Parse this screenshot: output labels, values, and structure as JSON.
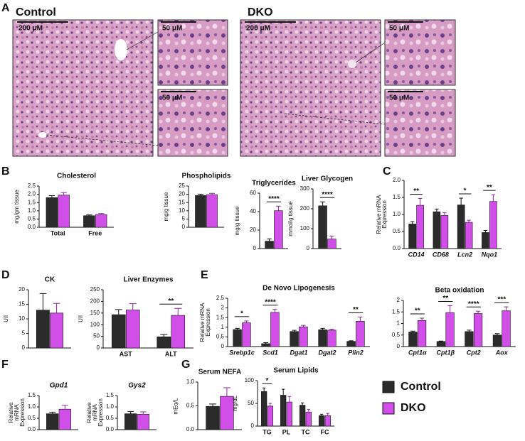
{
  "panel_labels": [
    "A",
    "B",
    "C",
    "D",
    "E",
    "F",
    "G"
  ],
  "histology": [
    {
      "label": "Control",
      "main_scale": "200 μM",
      "inset_scales": [
        "50 μM",
        "50 μM"
      ]
    },
    {
      "label": "DKO",
      "main_scale": "200 μM",
      "inset_scales": [
        "50 μM",
        "50 μM"
      ]
    }
  ],
  "chart_data": [
    {
      "type": "bar",
      "title": "Cholesterol",
      "y_label": "mg/gm tissue",
      "categories": [
        "Total",
        "Free"
      ],
      "ylim": [
        0,
        2.5
      ],
      "yticks": [
        {
          "value": 0,
          "label": "0.0"
        },
        {
          "value": 0.5,
          "label": "0.5"
        },
        {
          "value": 1,
          "label": "1.0"
        },
        {
          "value": 1.5,
          "label": "1.5"
        },
        {
          "value": 2,
          "label": "2.0"
        },
        {
          "value": 2.5,
          "label": "2.5"
        }
      ],
      "series": [
        {
          "name": "Control",
          "color": "#2b2b2b",
          "values": [
            1.8,
            0.7
          ],
          "errors": [
            0.12,
            0.05
          ]
        },
        {
          "name": "DKO",
          "color": "#d24ee8",
          "values": [
            1.95,
            0.77
          ],
          "errors": [
            0.15,
            0.06
          ]
        }
      ]
    },
    {
      "type": "bar",
      "title": "Phospholipids",
      "y_label": "mg/g tissue",
      "categories": [
        null
      ],
      "ylim": [
        0,
        25
      ],
      "yticks": [
        0,
        5,
        10,
        15,
        20,
        25
      ],
      "series": [
        {
          "name": "Control",
          "color": "#2b2b2b",
          "values": [
            19.3
          ],
          "errors": [
            0.8
          ]
        },
        {
          "name": "DKO",
          "color": "#d24ee8",
          "values": [
            19.8
          ],
          "errors": [
            0.8
          ]
        }
      ]
    },
    {
      "type": "bar",
      "title": "Triglycerides",
      "y_label": "mg/g tissue",
      "categories": [
        null
      ],
      "significance": [
        "****"
      ],
      "ylim": [
        0,
        60
      ],
      "yticks": [
        0,
        20,
        40,
        60
      ],
      "series": [
        {
          "name": "Control",
          "color": "#2b2b2b",
          "values": [
            8
          ],
          "errors": [
            2.5
          ]
        },
        {
          "name": "DKO",
          "color": "#d24ee8",
          "values": [
            41
          ],
          "errors": [
            5
          ]
        }
      ]
    },
    {
      "type": "bar",
      "title": "Liver Glycogen",
      "y_label": "mmol/g tissue",
      "categories": [
        null
      ],
      "significance": [
        "****"
      ],
      "ylim": [
        0,
        300
      ],
      "yticks": [
        0,
        100,
        200,
        300
      ],
      "series": [
        {
          "name": "Control",
          "color": "#2b2b2b",
          "values": [
            215
          ],
          "errors": [
            20
          ]
        },
        {
          "name": "DKO",
          "color": "#d24ee8",
          "values": [
            48
          ],
          "errors": [
            15
          ]
        }
      ]
    },
    {
      "type": "bar",
      "y_label": "Relative mRNA Expression",
      "categories": [
        "CD14",
        "CD68",
        "Lcn2",
        "Nqo1"
      ],
      "italic_categories": true,
      "significance": [
        "**",
        null,
        "*",
        "**"
      ],
      "ylim": [
        0,
        2
      ],
      "yticks": [
        {
          "value": 0,
          "label": "0.0"
        },
        {
          "value": 0.5,
          "label": "0.5"
        },
        {
          "value": 1,
          "label": "1.0"
        },
        {
          "value": 1.5,
          "label": "1.5"
        },
        {
          "value": 2,
          "label": "2.0"
        }
      ],
      "series": [
        {
          "name": "Control",
          "color": "#2b2b2b",
          "values": [
            0.72,
            1.08,
            1.28,
            0.47
          ],
          "errors": [
            0.07,
            0.08,
            0.2,
            0.06
          ]
        },
        {
          "name": "DKO",
          "color": "#d24ee8",
          "values": [
            1.27,
            0.97,
            0.77,
            1.38
          ],
          "errors": [
            0.2,
            0.08,
            0.06,
            0.2
          ]
        }
      ]
    },
    {
      "type": "bar",
      "title": "CK",
      "y_label": "U/l",
      "categories": [
        null
      ],
      "ylim": [
        0,
        20
      ],
      "yticks": [
        0,
        5,
        10,
        15,
        20
      ],
      "series": [
        {
          "name": "Control",
          "color": "#2b2b2b",
          "values": [
            13
          ],
          "errors": [
            5.7
          ]
        },
        {
          "name": "DKO",
          "color": "#d24ee8",
          "values": [
            12
          ],
          "errors": [
            3.3
          ]
        }
      ]
    },
    {
      "type": "bar",
      "title": "Liver Enzymes",
      "y_label": "U/l",
      "categories": [
        "AST",
        "ALT"
      ],
      "significance": [
        null,
        "**"
      ],
      "ylim": [
        0,
        250
      ],
      "yticks": [
        0,
        50,
        100,
        150,
        200,
        250
      ],
      "series": [
        {
          "name": "Control",
          "color": "#2b2b2b",
          "values": [
            143,
            48
          ],
          "errors": [
            22,
            10
          ]
        },
        {
          "name": "DKO",
          "color": "#d24ee8",
          "values": [
            163,
            140
          ],
          "errors": [
            27,
            30
          ]
        }
      ]
    },
    {
      "type": "bar",
      "title": "De Novo Lipogenesis",
      "y_label": "Relative mRNA Expression",
      "categories": [
        "Srebp1c",
        "Scd1",
        "Dgat1",
        "Dgat2",
        "Plin2"
      ],
      "italic_categories": true,
      "significance": [
        "*",
        "****",
        null,
        null,
        "**"
      ],
      "ylim": [
        0,
        2.5
      ],
      "yticks": [
        0,
        0.5,
        1,
        1.5,
        2,
        2.5
      ],
      "series": [
        {
          "name": "Control",
          "color": "#2b2b2b",
          "values": [
            0.88,
            0.15,
            0.78,
            0.87,
            0.27
          ],
          "errors": [
            0.06,
            0.05,
            0.06,
            0.07,
            0.03
          ]
        },
        {
          "name": "DKO",
          "color": "#d24ee8",
          "values": [
            1.23,
            1.77,
            1.02,
            0.85,
            1.31
          ],
          "errors": [
            0.1,
            0.15,
            0.08,
            0.05,
            0.22
          ]
        }
      ]
    },
    {
      "type": "bar",
      "title": "Beta oxidation",
      "categories": [
        "Cpt1α",
        "Cpt1β",
        "Cpt2",
        "Aox"
      ],
      "italic_categories": true,
      "significance": [
        "**",
        "**",
        "****",
        "***"
      ],
      "ylim": [
        0,
        2
      ],
      "yticks": [
        0,
        0.5,
        1,
        1.5,
        2
      ],
      "series": [
        {
          "name": "Control",
          "color": "#2b2b2b",
          "values": [
            0.63,
            0.22,
            0.65,
            0.5
          ],
          "errors": [
            0.04,
            0.02,
            0.06,
            0.06
          ]
        },
        {
          "name": "DKO",
          "color": "#d24ee8",
          "values": [
            1.13,
            1.47,
            1.43,
            1.55
          ],
          "errors": [
            0.1,
            0.3,
            0.1,
            0.17
          ]
        }
      ]
    },
    {
      "type": "bar",
      "title": "Gpd1",
      "title_italic": true,
      "y_label": "Relative mRNA Expression",
      "categories": [
        null
      ],
      "ylim": [
        0,
        1.5
      ],
      "yticks": [
        {
          "value": 0,
          "label": "0.0"
        },
        {
          "value": 0.5,
          "label": "0.5"
        },
        {
          "value": 1,
          "label": "1.0"
        },
        {
          "value": 1.5,
          "label": "1.5"
        }
      ],
      "series": [
        {
          "name": "Control",
          "color": "#2b2b2b",
          "values": [
            0.7
          ],
          "errors": [
            0.07
          ]
        },
        {
          "name": "DKO",
          "color": "#d24ee8",
          "values": [
            0.9
          ],
          "errors": [
            0.17
          ]
        }
      ]
    },
    {
      "type": "bar",
      "title": "Gys2",
      "title_italic": true,
      "y_label": "Relative mRNA Expression",
      "categories": [
        null
      ],
      "ylim": [
        0,
        1.5
      ],
      "yticks": [
        {
          "value": 0,
          "label": "0.0"
        },
        {
          "value": 0.5,
          "label": "0.5"
        },
        {
          "value": 1,
          "label": "1.0"
        },
        {
          "value": 1.5,
          "label": "1.5"
        }
      ],
      "series": [
        {
          "name": "Control",
          "color": "#2b2b2b",
          "values": [
            0.7
          ],
          "errors": [
            0.1
          ]
        },
        {
          "name": "DKO",
          "color": "#d24ee8",
          "values": [
            0.68
          ],
          "errors": [
            0.1
          ]
        }
      ]
    },
    {
      "type": "bar",
      "title": "Serum NEFA",
      "y_label": "mEq/L",
      "categories": [
        null
      ],
      "ylim": [
        0,
        1
      ],
      "yticks": [
        {
          "value": 0,
          "label": "0.0"
        },
        {
          "value": 0.5,
          "label": "0.5"
        },
        {
          "value": 1,
          "label": "1.0"
        }
      ],
      "series": [
        {
          "name": "Control",
          "color": "#2b2b2b",
          "values": [
            0.49
          ],
          "errors": [
            0.05
          ]
        },
        {
          "name": "DKO",
          "color": "#d24ee8",
          "values": [
            0.7
          ],
          "errors": [
            0.18
          ]
        }
      ]
    },
    {
      "type": "bar",
      "title": "Serum Lipids",
      "y_label": "mg/dL",
      "categories": [
        "TG",
        "PL",
        "TC",
        "FC"
      ],
      "significance": [
        "*",
        null,
        null,
        null
      ],
      "ylim": [
        0,
        100
      ],
      "yticks": [
        0,
        50,
        100
      ],
      "series": [
        {
          "name": "Control",
          "color": "#2b2b2b",
          "values": [
            76,
            68,
            46,
            23
          ],
          "errors": [
            8,
            13,
            5,
            3
          ]
        },
        {
          "name": "DKO",
          "color": "#d24ee8",
          "values": [
            44,
            53,
            31,
            23
          ],
          "errors": [
            6,
            12,
            6,
            5
          ]
        }
      ]
    }
  ]
}
